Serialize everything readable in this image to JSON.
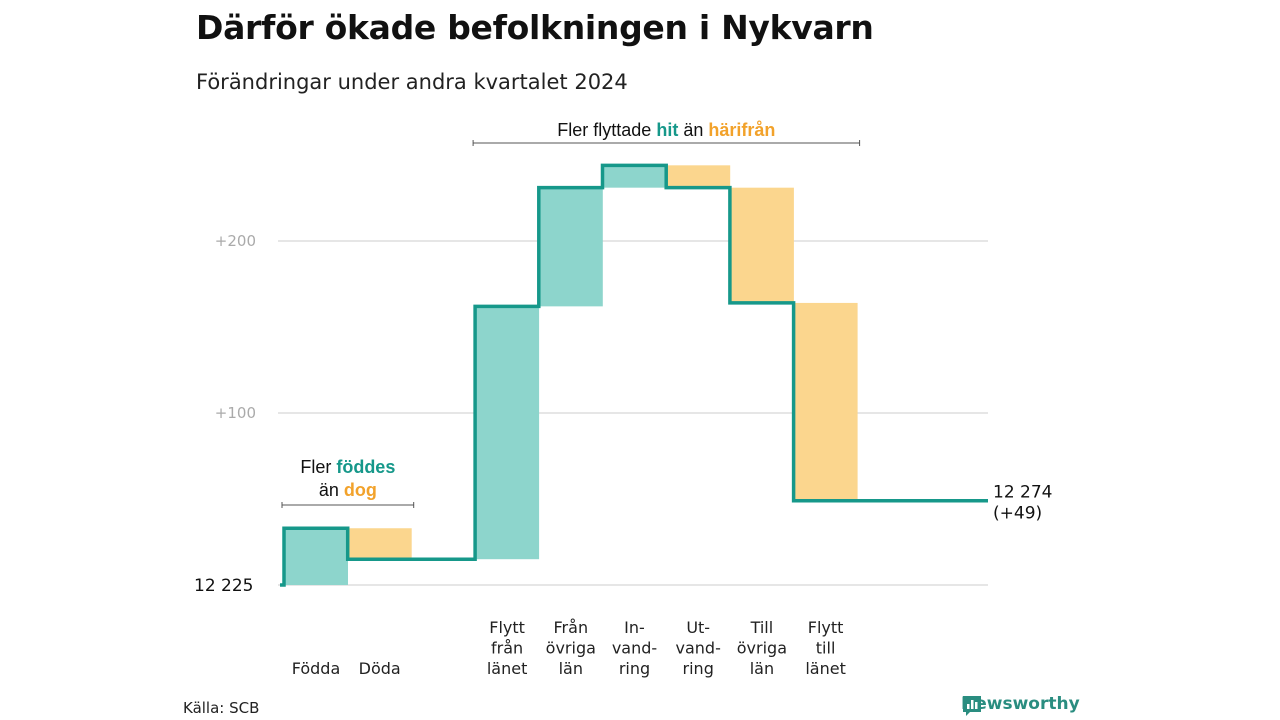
{
  "header": {
    "title": "Därför ökade befolkningen i Nykvarn",
    "subtitle": "Förändringar under andra kvartalet 2024"
  },
  "footer": {
    "source": "Källa: SCB",
    "brand": "Newsworthy"
  },
  "colors": {
    "increase": "#8dd5cc",
    "decrease": "#fbd68e",
    "line": "#16988a",
    "grid": "#dddddd",
    "accent_increase_text": "#16988a",
    "accent_decrease_text": "#f2a22b"
  },
  "chart_data": {
    "type": "waterfall",
    "title": "Därför ökade befolkningen i Nykvarn",
    "subtitle": "Förändringar under andra kvartalet 2024",
    "baseline": 12225,
    "start_label": "12  225",
    "end_label_lines": [
      "12 274",
      "(+49)"
    ],
    "end_total": 12274,
    "net_change": 49,
    "y_range_relative": [
      0,
      250
    ],
    "y_ticks": [
      {
        "value": 100,
        "label": "+100"
      },
      {
        "value": 200,
        "label": "+200"
      }
    ],
    "grid": true,
    "categories": [
      {
        "lines": [
          "Födda"
        ],
        "value": 33,
        "kind": "increase"
      },
      {
        "lines": [
          "Döda"
        ],
        "value": -18,
        "kind": "decrease"
      },
      {
        "lines": [],
        "value": 0,
        "kind": "gap"
      },
      {
        "lines": [
          "Flytt",
          "från",
          "länet"
        ],
        "value": 147,
        "kind": "increase"
      },
      {
        "lines": [
          "Från",
          "övriga",
          "län"
        ],
        "value": 69,
        "kind": "increase"
      },
      {
        "lines": [
          "In-",
          "vand-",
          "ring"
        ],
        "value": 13,
        "kind": "increase"
      },
      {
        "lines": [
          "Ut-",
          "vand-",
          "ring"
        ],
        "value": -13,
        "kind": "decrease"
      },
      {
        "lines": [
          "Till",
          "övriga",
          "län"
        ],
        "value": -67,
        "kind": "decrease"
      },
      {
        "lines": [
          "Flytt",
          "till",
          "länet"
        ],
        "value": -115,
        "kind": "decrease"
      }
    ],
    "annotations": [
      {
        "lines": [
          [
            {
              "text": "Fler ",
              "style": "plain"
            },
            {
              "text": "föddes",
              "style": "up"
            }
          ],
          [
            {
              "text": "än ",
              "style": "plain"
            },
            {
              "text": "dog",
              "style": "down"
            }
          ]
        ],
        "span": [
          0,
          1
        ]
      },
      {
        "lines": [
          [
            {
              "text": "Fler flyttade ",
              "style": "plain"
            },
            {
              "text": "hit",
              "style": "up"
            },
            {
              "text": "  än ",
              "style": "plain"
            },
            {
              "text": "härifrån",
              "style": "down"
            }
          ]
        ],
        "span": [
          3,
          8
        ]
      }
    ]
  }
}
